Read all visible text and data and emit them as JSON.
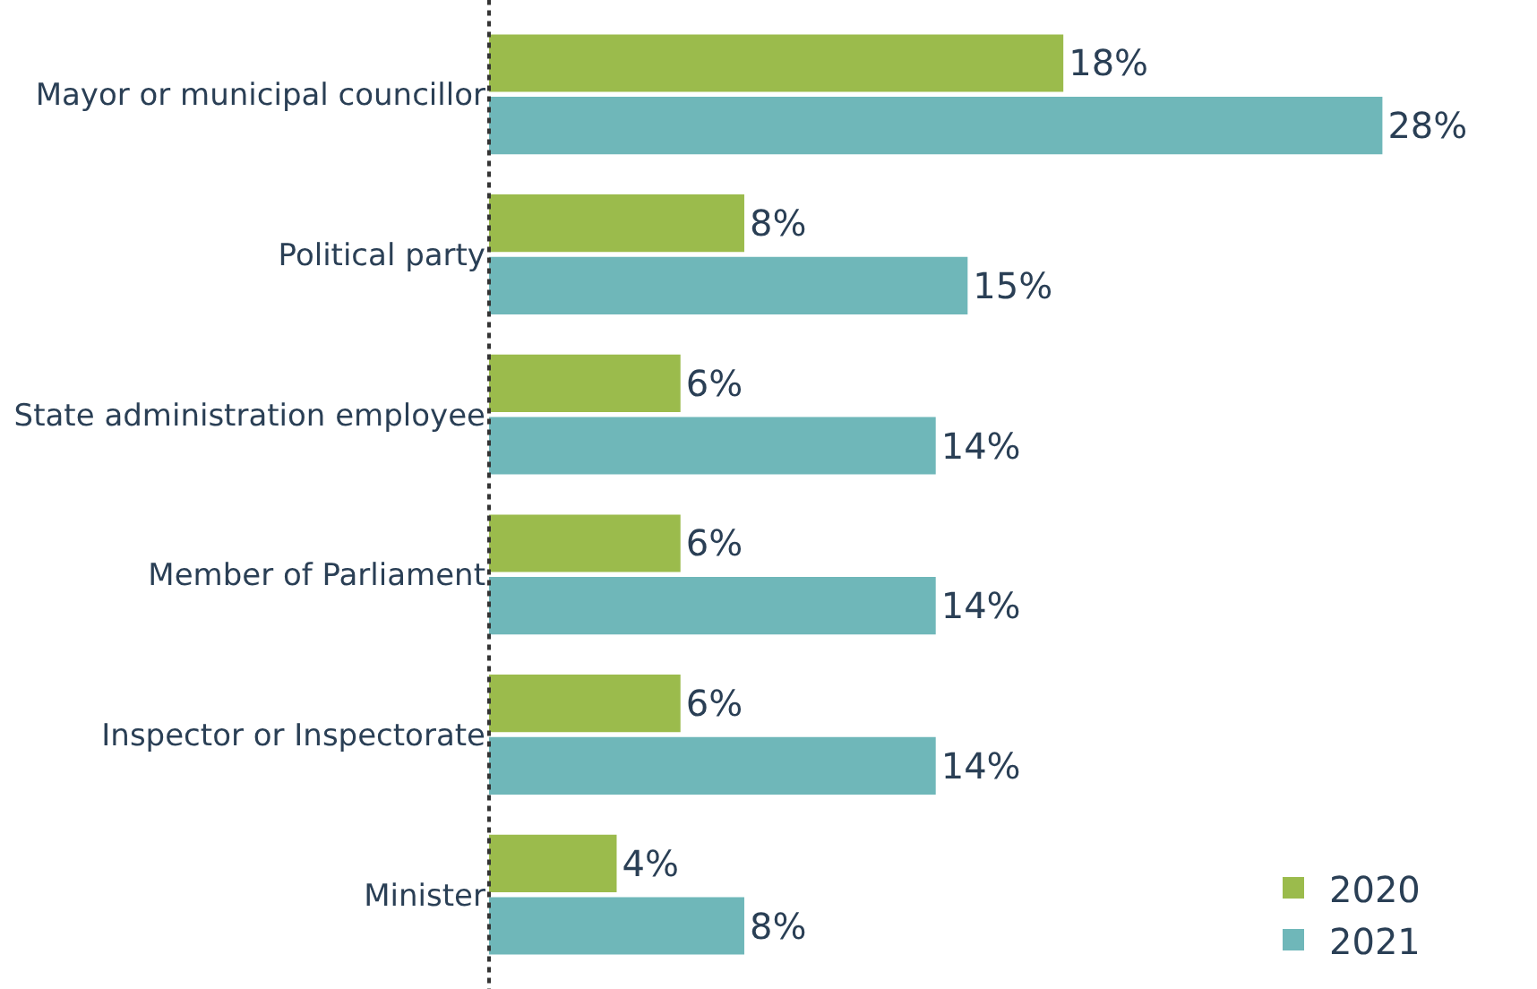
{
  "chart_data": {
    "type": "bar",
    "orientation": "horizontal",
    "categories": [
      "Mayor or municipal councillor",
      "Political party",
      "State administration employee",
      "Member of Parliament",
      "Inspector or Inspectorate",
      "Minister"
    ],
    "series": [
      {
        "name": "2020",
        "color": "#9bbb4c",
        "values": [
          18,
          8,
          6,
          6,
          6,
          4
        ],
        "value_labels": [
          "18%",
          "8%",
          "6%",
          "6%",
          "6%",
          "4%"
        ]
      },
      {
        "name": "2021",
        "color": "#6fb7b9",
        "values": [
          28,
          15,
          14,
          14,
          14,
          8
        ],
        "value_labels": [
          "28%",
          "15%",
          "14%",
          "14%",
          "14%",
          "8%"
        ]
      }
    ],
    "legend": "bottom right"
  }
}
